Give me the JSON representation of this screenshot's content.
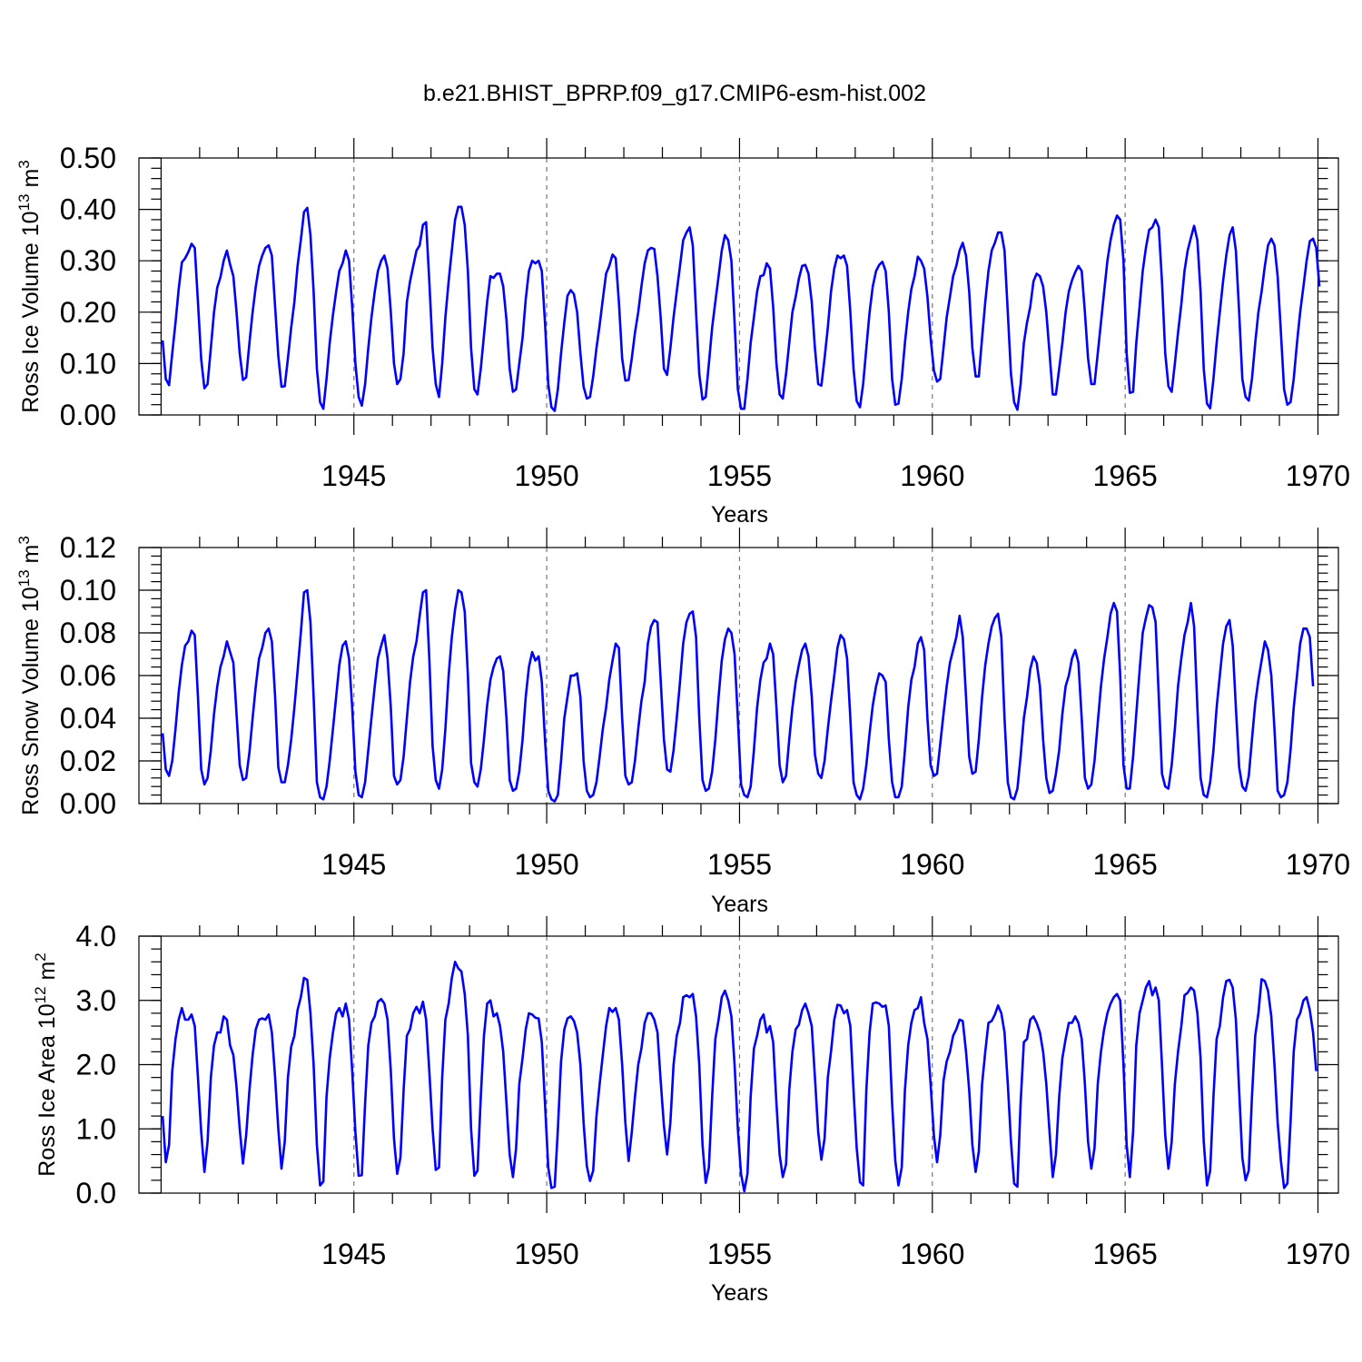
{
  "figure": {
    "title": "b.e21.BHIST_BPRP.f09_g17.CMIP6-esm-hist.002"
  },
  "colors": {
    "series": "#0000ff",
    "axes": "#000000",
    "grid": "#777777"
  },
  "chart_data": [
    {
      "type": "line",
      "xlabel": "Years",
      "ylabel_main": "Ross Ice Volume 10",
      "ylabel_exp": "13",
      "ylabel_unit": " m",
      "ylabel_unit_exp": "3",
      "xlim": [
        1940,
        1970
      ],
      "ylim": [
        0,
        0.5
      ],
      "yticks": [
        0.0,
        0.1,
        0.2,
        0.3,
        0.4,
        0.5
      ],
      "ytick_labels": [
        "0.00",
        "0.10",
        "0.20",
        "0.30",
        "0.40",
        "0.50"
      ],
      "xticks": [
        1945,
        1950,
        1955,
        1960,
        1965,
        1970
      ],
      "xtick_labels": [
        "1945",
        "1950",
        "1955",
        "1960",
        "1965",
        "1970"
      ],
      "grid": "vertical dashed at labeled years",
      "x_start": 1940.04,
      "x_step": 0.08333,
      "values": [
        0.145,
        0.07,
        0.058,
        0.12,
        0.18,
        0.245,
        0.297,
        0.305,
        0.317,
        0.333,
        0.325,
        0.22,
        0.108,
        0.052,
        0.06,
        0.13,
        0.2,
        0.248,
        0.268,
        0.3,
        0.32,
        0.293,
        0.27,
        0.2,
        0.12,
        0.068,
        0.073,
        0.14,
        0.2,
        0.25,
        0.29,
        0.31,
        0.325,
        0.33,
        0.31,
        0.21,
        0.115,
        0.055,
        0.056,
        0.11,
        0.17,
        0.22,
        0.29,
        0.34,
        0.395,
        0.403,
        0.35,
        0.24,
        0.09,
        0.025,
        0.012,
        0.07,
        0.14,
        0.195,
        0.24,
        0.28,
        0.295,
        0.32,
        0.3,
        0.21,
        0.1,
        0.035,
        0.018,
        0.06,
        0.13,
        0.19,
        0.24,
        0.28,
        0.3,
        0.31,
        0.285,
        0.2,
        0.1,
        0.06,
        0.07,
        0.12,
        0.22,
        0.26,
        0.29,
        0.32,
        0.33,
        0.37,
        0.375,
        0.26,
        0.13,
        0.06,
        0.035,
        0.1,
        0.19,
        0.26,
        0.32,
        0.38,
        0.405,
        0.405,
        0.37,
        0.28,
        0.13,
        0.05,
        0.04,
        0.09,
        0.155,
        0.22,
        0.27,
        0.267,
        0.275,
        0.275,
        0.25,
        0.185,
        0.09,
        0.045,
        0.05,
        0.1,
        0.15,
        0.225,
        0.28,
        0.3,
        0.295,
        0.3,
        0.28,
        0.18,
        0.06,
        0.015,
        0.008,
        0.05,
        0.12,
        0.18,
        0.232,
        0.243,
        0.235,
        0.2,
        0.12,
        0.055,
        0.032,
        0.035,
        0.075,
        0.13,
        0.175,
        0.225,
        0.275,
        0.29,
        0.312,
        0.305,
        0.22,
        0.11,
        0.067,
        0.068,
        0.11,
        0.16,
        0.2,
        0.25,
        0.295,
        0.32,
        0.325,
        0.323,
        0.27,
        0.19,
        0.09,
        0.078,
        0.13,
        0.19,
        0.24,
        0.29,
        0.34,
        0.355,
        0.365,
        0.33,
        0.2,
        0.08,
        0.03,
        0.035,
        0.1,
        0.17,
        0.22,
        0.27,
        0.32,
        0.35,
        0.34,
        0.3,
        0.18,
        0.05,
        0.012,
        0.012,
        0.07,
        0.14,
        0.19,
        0.24,
        0.27,
        0.272,
        0.295,
        0.285,
        0.21,
        0.1,
        0.04,
        0.032,
        0.08,
        0.14,
        0.2,
        0.23,
        0.265,
        0.29,
        0.292,
        0.275,
        0.22,
        0.13,
        0.06,
        0.057,
        0.11,
        0.17,
        0.24,
        0.285,
        0.31,
        0.305,
        0.31,
        0.29,
        0.2,
        0.09,
        0.027,
        0.015,
        0.06,
        0.13,
        0.2,
        0.25,
        0.28,
        0.292,
        0.298,
        0.28,
        0.2,
        0.07,
        0.02,
        0.022,
        0.07,
        0.14,
        0.2,
        0.245,
        0.27,
        0.308,
        0.3,
        0.285,
        0.23,
        0.15,
        0.087,
        0.065,
        0.07,
        0.13,
        0.19,
        0.23,
        0.27,
        0.29,
        0.32,
        0.335,
        0.31,
        0.24,
        0.13,
        0.075,
        0.075,
        0.15,
        0.22,
        0.28,
        0.32,
        0.335,
        0.355,
        0.355,
        0.32,
        0.2,
        0.08,
        0.025,
        0.01,
        0.06,
        0.14,
        0.18,
        0.21,
        0.26,
        0.275,
        0.27,
        0.25,
        0.2,
        0.12,
        0.04,
        0.04,
        0.09,
        0.14,
        0.2,
        0.24,
        0.262,
        0.278,
        0.29,
        0.28,
        0.2,
        0.11,
        0.06,
        0.06,
        0.12,
        0.18,
        0.24,
        0.3,
        0.34,
        0.37,
        0.388,
        0.38,
        0.3,
        0.12,
        0.043,
        0.045,
        0.14,
        0.21,
        0.28,
        0.325,
        0.36,
        0.365,
        0.38,
        0.365,
        0.26,
        0.12,
        0.056,
        0.045,
        0.1,
        0.16,
        0.215,
        0.28,
        0.32,
        0.345,
        0.368,
        0.34,
        0.24,
        0.09,
        0.022,
        0.013,
        0.07,
        0.14,
        0.2,
        0.26,
        0.31,
        0.35,
        0.365,
        0.32,
        0.2,
        0.07,
        0.035,
        0.028,
        0.07,
        0.14,
        0.2,
        0.24,
        0.29,
        0.33,
        0.343,
        0.33,
        0.27,
        0.16,
        0.05,
        0.02,
        0.025,
        0.07,
        0.14,
        0.2,
        0.25,
        0.3,
        0.338,
        0.343,
        0.325,
        0.25
      ]
    },
    {
      "type": "line",
      "xlabel": "Years",
      "ylabel_main": "Ross Snow Volume 10",
      "ylabel_exp": "13",
      "ylabel_unit": " m",
      "ylabel_unit_exp": "3",
      "xlim": [
        1940,
        1970
      ],
      "ylim": [
        0,
        0.12
      ],
      "yticks": [
        0.0,
        0.02,
        0.04,
        0.06,
        0.08,
        0.1,
        0.12
      ],
      "ytick_labels": [
        "0.00",
        "0.02",
        "0.04",
        "0.06",
        "0.08",
        "0.10",
        "0.12"
      ],
      "xticks": [
        1945,
        1950,
        1955,
        1960,
        1965,
        1970
      ],
      "xtick_labels": [
        "1945",
        "1950",
        "1955",
        "1960",
        "1965",
        "1970"
      ],
      "grid": "vertical dashed at labeled years",
      "x_start": 1940.04,
      "x_step": 0.08333,
      "values": [
        0.033,
        0.016,
        0.013,
        0.02,
        0.035,
        0.052,
        0.065,
        0.074,
        0.076,
        0.081,
        0.079,
        0.05,
        0.016,
        0.009,
        0.012,
        0.025,
        0.042,
        0.055,
        0.064,
        0.069,
        0.076,
        0.071,
        0.066,
        0.042,
        0.018,
        0.011,
        0.012,
        0.024,
        0.04,
        0.055,
        0.068,
        0.073,
        0.08,
        0.082,
        0.076,
        0.05,
        0.017,
        0.01,
        0.01,
        0.018,
        0.03,
        0.045,
        0.062,
        0.08,
        0.099,
        0.1,
        0.085,
        0.05,
        0.01,
        0.003,
        0.002,
        0.008,
        0.02,
        0.035,
        0.05,
        0.065,
        0.074,
        0.076,
        0.068,
        0.045,
        0.015,
        0.004,
        0.003,
        0.01,
        0.025,
        0.04,
        0.055,
        0.068,
        0.074,
        0.079,
        0.068,
        0.045,
        0.013,
        0.009,
        0.011,
        0.022,
        0.04,
        0.057,
        0.069,
        0.076,
        0.088,
        0.099,
        0.1,
        0.068,
        0.027,
        0.011,
        0.007,
        0.016,
        0.035,
        0.06,
        0.078,
        0.091,
        0.1,
        0.099,
        0.09,
        0.06,
        0.019,
        0.01,
        0.008,
        0.016,
        0.03,
        0.046,
        0.058,
        0.064,
        0.068,
        0.069,
        0.062,
        0.04,
        0.011,
        0.006,
        0.007,
        0.015,
        0.03,
        0.05,
        0.064,
        0.071,
        0.067,
        0.069,
        0.057,
        0.03,
        0.006,
        0.002,
        0.001,
        0.004,
        0.02,
        0.04,
        0.05,
        0.06,
        0.06,
        0.061,
        0.05,
        0.02,
        0.006,
        0.003,
        0.004,
        0.01,
        0.022,
        0.035,
        0.045,
        0.058,
        0.067,
        0.075,
        0.073,
        0.04,
        0.013,
        0.009,
        0.01,
        0.02,
        0.035,
        0.048,
        0.057,
        0.075,
        0.083,
        0.086,
        0.085,
        0.058,
        0.03,
        0.016,
        0.015,
        0.025,
        0.04,
        0.057,
        0.075,
        0.085,
        0.089,
        0.09,
        0.078,
        0.04,
        0.011,
        0.006,
        0.007,
        0.015,
        0.03,
        0.05,
        0.067,
        0.077,
        0.082,
        0.08,
        0.07,
        0.04,
        0.009,
        0.004,
        0.003,
        0.008,
        0.025,
        0.045,
        0.058,
        0.066,
        0.068,
        0.075,
        0.07,
        0.045,
        0.018,
        0.01,
        0.013,
        0.03,
        0.045,
        0.057,
        0.065,
        0.072,
        0.075,
        0.069,
        0.05,
        0.023,
        0.014,
        0.012,
        0.02,
        0.035,
        0.048,
        0.06,
        0.073,
        0.079,
        0.077,
        0.068,
        0.04,
        0.01,
        0.004,
        0.002,
        0.007,
        0.018,
        0.033,
        0.046,
        0.055,
        0.061,
        0.06,
        0.057,
        0.03,
        0.01,
        0.003,
        0.003,
        0.008,
        0.025,
        0.045,
        0.058,
        0.064,
        0.075,
        0.078,
        0.072,
        0.04,
        0.018,
        0.013,
        0.014,
        0.028,
        0.042,
        0.055,
        0.066,
        0.072,
        0.078,
        0.088,
        0.078,
        0.05,
        0.022,
        0.014,
        0.015,
        0.03,
        0.05,
        0.065,
        0.075,
        0.083,
        0.087,
        0.089,
        0.078,
        0.04,
        0.01,
        0.003,
        0.002,
        0.007,
        0.022,
        0.04,
        0.05,
        0.063,
        0.069,
        0.066,
        0.055,
        0.03,
        0.012,
        0.005,
        0.006,
        0.014,
        0.025,
        0.042,
        0.055,
        0.06,
        0.068,
        0.072,
        0.066,
        0.04,
        0.012,
        0.007,
        0.009,
        0.02,
        0.038,
        0.055,
        0.068,
        0.078,
        0.089,
        0.094,
        0.09,
        0.06,
        0.018,
        0.007,
        0.007,
        0.022,
        0.042,
        0.062,
        0.08,
        0.087,
        0.093,
        0.092,
        0.085,
        0.05,
        0.014,
        0.008,
        0.007,
        0.018,
        0.035,
        0.055,
        0.068,
        0.079,
        0.085,
        0.094,
        0.083,
        0.045,
        0.012,
        0.004,
        0.003,
        0.01,
        0.025,
        0.045,
        0.06,
        0.075,
        0.083,
        0.086,
        0.074,
        0.045,
        0.017,
        0.008,
        0.006,
        0.013,
        0.03,
        0.047,
        0.058,
        0.067,
        0.076,
        0.072,
        0.06,
        0.035,
        0.006,
        0.003,
        0.004,
        0.01,
        0.025,
        0.045,
        0.06,
        0.075,
        0.082,
        0.082,
        0.078,
        0.055
      ]
    },
    {
      "type": "line",
      "xlabel": "Years",
      "ylabel_main": "Ross Ice Area 10",
      "ylabel_exp": "12",
      "ylabel_unit": " m",
      "ylabel_unit_exp": "2",
      "xlim": [
        1940,
        1970
      ],
      "ylim": [
        0,
        4
      ],
      "yticks": [
        0.0,
        1.0,
        2.0,
        3.0,
        4.0
      ],
      "ytick_labels": [
        "0.0",
        "1.0",
        "2.0",
        "3.0",
        "4.0"
      ],
      "xticks": [
        1945,
        1950,
        1955,
        1960,
        1965,
        1970
      ],
      "xtick_labels": [
        "1945",
        "1950",
        "1955",
        "1960",
        "1965",
        "1970"
      ],
      "grid": "vertical dashed at labeled years",
      "x_start": 1940.04,
      "x_step": 0.08333,
      "values": [
        1.2,
        0.48,
        0.75,
        1.9,
        2.4,
        2.7,
        2.88,
        2.7,
        2.7,
        2.78,
        2.6,
        1.8,
        0.95,
        0.33,
        0.8,
        1.8,
        2.3,
        2.5,
        2.5,
        2.75,
        2.7,
        2.3,
        2.15,
        1.65,
        1.0,
        0.46,
        0.9,
        1.6,
        2.15,
        2.55,
        2.7,
        2.72,
        2.7,
        2.78,
        2.5,
        1.8,
        1.0,
        0.38,
        0.8,
        1.8,
        2.28,
        2.45,
        2.85,
        3.05,
        3.35,
        3.32,
        2.8,
        2.0,
        0.75,
        0.12,
        0.18,
        1.5,
        2.1,
        2.5,
        2.8,
        2.88,
        2.75,
        2.95,
        2.7,
        1.9,
        0.95,
        0.27,
        0.28,
        1.4,
        2.3,
        2.65,
        2.75,
        2.98,
        3.02,
        2.95,
        2.7,
        1.9,
        0.85,
        0.3,
        0.55,
        1.6,
        2.45,
        2.55,
        2.8,
        2.9,
        2.8,
        2.98,
        2.7,
        1.9,
        1.0,
        0.36,
        0.4,
        1.8,
        2.7,
        2.95,
        3.35,
        3.6,
        3.5,
        3.45,
        3.1,
        2.45,
        1.0,
        0.27,
        0.35,
        1.5,
        2.45,
        2.95,
        3.0,
        2.75,
        2.8,
        2.6,
        2.2,
        1.4,
        0.6,
        0.25,
        0.7,
        1.7,
        2.1,
        2.55,
        2.8,
        2.78,
        2.73,
        2.72,
        2.35,
        1.4,
        0.4,
        0.08,
        0.1,
        1.0,
        2.05,
        2.55,
        2.72,
        2.75,
        2.68,
        2.5,
        2.0,
        1.1,
        0.42,
        0.19,
        0.35,
        1.2,
        1.7,
        2.15,
        2.6,
        2.88,
        2.82,
        2.88,
        2.7,
        2.0,
        1.1,
        0.5,
        0.95,
        1.5,
        2.0,
        2.25,
        2.65,
        2.8,
        2.8,
        2.7,
        2.5,
        1.75,
        1.05,
        0.6,
        1.1,
        2.0,
        2.45,
        2.65,
        3.05,
        3.08,
        3.05,
        3.1,
        2.75,
        2.0,
        0.75,
        0.16,
        0.4,
        1.5,
        2.4,
        2.7,
        3.05,
        3.15,
        3.0,
        2.75,
        2.0,
        1.0,
        0.3,
        0.03,
        0.3,
        1.5,
        2.25,
        2.45,
        2.7,
        2.78,
        2.5,
        2.6,
        2.35,
        1.4,
        0.6,
        0.25,
        0.45,
        1.6,
        2.2,
        2.55,
        2.62,
        2.85,
        2.95,
        2.8,
        2.6,
        1.8,
        0.95,
        0.52,
        0.85,
        1.8,
        2.2,
        2.7,
        2.93,
        2.92,
        2.8,
        2.85,
        2.6,
        1.6,
        0.7,
        0.17,
        0.12,
        1.6,
        2.5,
        2.95,
        2.97,
        2.95,
        2.9,
        2.92,
        2.6,
        1.4,
        0.5,
        0.12,
        0.4,
        1.6,
        2.3,
        2.65,
        2.85,
        2.88,
        3.05,
        2.65,
        2.4,
        1.7,
        0.9,
        0.48,
        0.9,
        1.75,
        2.05,
        2.2,
        2.45,
        2.55,
        2.7,
        2.68,
        2.2,
        1.6,
        0.75,
        0.33,
        0.65,
        1.7,
        2.2,
        2.65,
        2.68,
        2.78,
        2.92,
        2.8,
        2.5,
        1.7,
        0.8,
        0.15,
        0.1,
        1.4,
        2.35,
        2.4,
        2.7,
        2.75,
        2.65,
        2.5,
        2.2,
        1.7,
        0.95,
        0.25,
        0.6,
        1.5,
        2.1,
        2.4,
        2.65,
        2.65,
        2.75,
        2.65,
        2.4,
        1.7,
        0.8,
        0.38,
        0.7,
        1.7,
        2.2,
        2.55,
        2.8,
        2.95,
        3.05,
        3.1,
        3.0,
        2.0,
        0.75,
        0.25,
        0.95,
        2.3,
        2.8,
        3.0,
        3.2,
        3.3,
        3.08,
        3.2,
        3.0,
        2.0,
        0.9,
        0.38,
        0.8,
        1.7,
        2.2,
        2.6,
        3.08,
        3.12,
        3.2,
        3.15,
        2.8,
        2.1,
        0.8,
        0.12,
        0.35,
        1.5,
        2.4,
        2.6,
        3.05,
        3.3,
        3.32,
        3.2,
        2.7,
        1.6,
        0.55,
        0.2,
        0.35,
        1.5,
        2.45,
        2.8,
        3.33,
        3.3,
        3.15,
        2.75,
        2.0,
        1.1,
        0.5,
        0.08,
        0.15,
        1.1,
        2.2,
        2.7,
        2.8,
        3.0,
        3.05,
        2.85,
        2.5,
        1.9
      ]
    }
  ]
}
